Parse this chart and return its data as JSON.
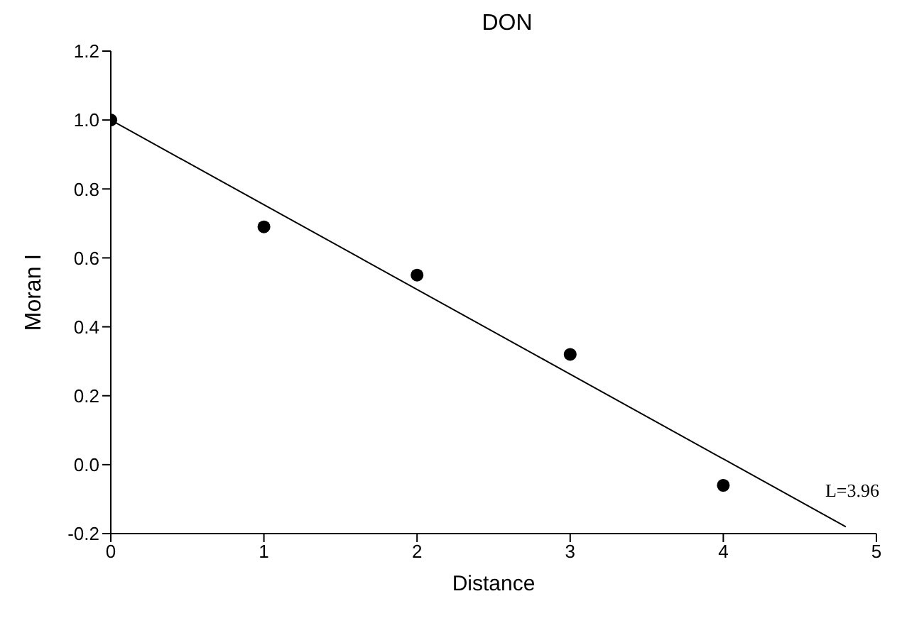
{
  "chart_data": {
    "type": "scatter",
    "title": "DON",
    "xlabel": "Distance",
    "ylabel": "Moran I",
    "x": [
      0,
      1,
      2,
      3,
      4
    ],
    "series": [
      {
        "color": "#000000",
        "marker": "circle",
        "values": [
          1.0,
          0.69,
          0.55,
          0.32,
          -0.06
        ]
      },
      {
        "type": "line",
        "color": "#000000",
        "marker": "none",
        "x": [
          0,
          4.8
        ],
        "values": [
          1.0,
          -0.18
        ]
      }
    ],
    "xlim": [
      0,
      5
    ],
    "xticks": [
      0,
      1,
      2,
      3,
      4,
      5
    ],
    "ylim": [
      -0.2,
      1.2
    ],
    "yticks": [
      {
        "value": -0.2,
        "label": "-0.2"
      },
      {
        "value": 0,
        "label": "0.0"
      },
      {
        "value": 0.2,
        "label": "0.2"
      },
      {
        "value": 0.4,
        "label": "0.4"
      },
      {
        "value": 0.6,
        "label": "0.6"
      },
      {
        "value": 0.8,
        "label": "0.8"
      },
      {
        "value": 1.0,
        "label": "1.0"
      },
      {
        "value": 1.2,
        "label": "1.2"
      }
    ],
    "annotations": [
      "L=3.96"
    ],
    "grid": false,
    "legend": false
  }
}
